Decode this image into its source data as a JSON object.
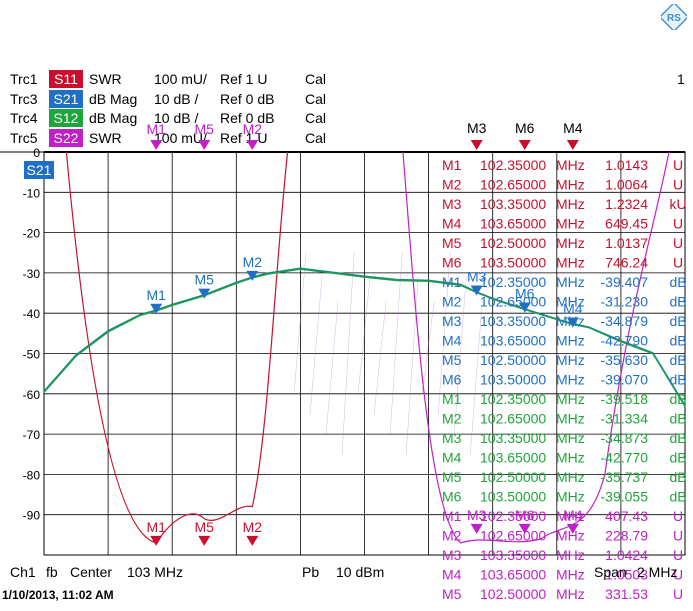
{
  "window": {
    "channel_number": "1"
  },
  "traces": [
    {
      "id": "Trc1",
      "param": "S11",
      "format": "SWR",
      "scale": "100 mU/",
      "ref": "Ref 1 U",
      "cal": "Cal",
      "color": "#c8102e"
    },
    {
      "id": "Trc3",
      "param": "S21",
      "format": "dB Mag",
      "scale": "10 dB /",
      "ref": "Ref 0 dB",
      "cal": "Cal",
      "color": "#1f6fc6"
    },
    {
      "id": "Trc4",
      "param": "S12",
      "format": "dB Mag",
      "scale": "10 dB /",
      "ref": "Ref 0 dB",
      "cal": "Cal",
      "color": "#1fa63a"
    },
    {
      "id": "Trc5",
      "param": "S22",
      "format": "SWR",
      "scale": "100 mU/",
      "ref": "Ref 1 U",
      "cal": "Cal",
      "color": "#c020c8"
    }
  ],
  "active_trace_tag": "S21",
  "footer": {
    "channel": "Ch1",
    "fb": "fb",
    "center": "Center",
    "center_value": "103 MHz",
    "pb": "Pb",
    "power": "10 dBm",
    "span": "Span",
    "span_value": "2 MHz",
    "timestamp": "1/10/2013, 11:02 AM"
  },
  "logo_icon": "rs-logo-icon",
  "chart_data": {
    "type": "line",
    "x_label_unit": "MHz",
    "xlim": [
      102,
      104
    ],
    "ylim": [
      -100,
      0
    ],
    "y_ticks": [
      0,
      -10,
      -20,
      -30,
      -40,
      -50,
      -60,
      -70,
      -80,
      -90
    ],
    "y_tick_labels": [
      "0",
      "-10",
      "-20",
      "-30",
      "-40",
      "-50",
      "-60",
      "-70",
      "-80",
      "-90"
    ],
    "grid": true,
    "series": [
      {
        "param": "S21",
        "color": "#1f6fc6",
        "x": [
          102.0,
          102.1,
          102.2,
          102.3,
          102.35,
          102.4,
          102.5,
          102.6,
          102.65,
          102.7,
          102.8,
          102.9,
          103.0,
          103.1,
          103.2,
          103.3,
          103.35,
          103.4,
          103.5,
          103.6,
          103.65,
          103.7,
          103.8,
          103.9,
          104.0
        ],
        "values": [
          -59.5,
          -50.5,
          -44.5,
          -40.5,
          -39.4,
          -38.0,
          -35.6,
          -32.5,
          -31.2,
          -30.2,
          -29.0,
          -30.0,
          -31.0,
          -31.8,
          -32.0,
          -33.0,
          -34.9,
          -36.5,
          -39.1,
          -41.6,
          -42.8,
          -43.6,
          -47.0,
          -50.0,
          -63.0
        ]
      },
      {
        "param": "S12",
        "color": "#1fa63a",
        "x": [
          102.0,
          102.1,
          102.2,
          102.3,
          102.35,
          102.4,
          102.5,
          102.6,
          102.65,
          102.7,
          102.8,
          102.9,
          103.0,
          103.1,
          103.2,
          103.3,
          103.35,
          103.4,
          103.5,
          103.6,
          103.65,
          103.7,
          103.8,
          103.9,
          104.0
        ],
        "values": [
          -59.7,
          -50.7,
          -44.7,
          -40.6,
          -39.5,
          -38.1,
          -35.7,
          -32.6,
          -31.3,
          -30.3,
          -29.1,
          -30.1,
          -31.1,
          -31.9,
          -32.1,
          -33.1,
          -34.9,
          -36.5,
          -39.1,
          -41.6,
          -42.8,
          -43.6,
          -47.1,
          -50.1,
          -63.2
        ]
      }
    ],
    "reflection_traces": [
      {
        "param": "S11",
        "color": "#c8102e"
      },
      {
        "param": "S22",
        "color": "#c020c8"
      }
    ],
    "top_markers": [
      {
        "label": "M3",
        "x": 103.35,
        "color": "#c8102e"
      },
      {
        "label": "M6",
        "x": 103.5,
        "color": "#c8102e"
      },
      {
        "label": "M4",
        "x": 103.65,
        "color": "#c8102e"
      }
    ],
    "markers_s21": [
      {
        "label": "M1",
        "x": 102.35,
        "y": -39.407
      },
      {
        "label": "M5",
        "x": 102.5,
        "y": -35.63
      },
      {
        "label": "M2",
        "x": 102.65,
        "y": -31.23
      },
      {
        "label": "M3",
        "x": 103.35,
        "y": -34.879
      },
      {
        "label": "M6",
        "x": 103.5,
        "y": -39.07
      },
      {
        "label": "M4",
        "x": 103.65,
        "y": -42.79
      }
    ],
    "markers_s11_bottom": [
      {
        "label": "M1",
        "x": 102.35
      },
      {
        "label": "M5",
        "x": 102.5
      },
      {
        "label": "M2",
        "x": 102.65
      }
    ],
    "markers_s22_bottom": [
      {
        "label": "M3",
        "x": 103.35
      },
      {
        "label": "M6",
        "x": 103.5
      },
      {
        "label": "M4",
        "x": 103.65
      }
    ],
    "markers_s22_top": [
      {
        "label": "M1",
        "x": 102.35
      },
      {
        "label": "M5",
        "x": 102.5
      },
      {
        "label": "M2",
        "x": 102.65
      }
    ],
    "marker_table": [
      {
        "m": "M1",
        "freq": "102.35000",
        "unit": "MHz",
        "value": "1.0143",
        "vunit": "U",
        "color": "#c8102e"
      },
      {
        "m": "M2",
        "freq": "102.65000",
        "unit": "MHz",
        "value": "1.0064",
        "vunit": "U",
        "color": "#c8102e"
      },
      {
        "m": "M3",
        "freq": "103.35000",
        "unit": "MHz",
        "value": "1.2324",
        "vunit": "kU",
        "color": "#c8102e"
      },
      {
        "m": "M4",
        "freq": "103.65000",
        "unit": "MHz",
        "value": "649.45",
        "vunit": "U",
        "color": "#c8102e"
      },
      {
        "m": "M5",
        "freq": "102.50000",
        "unit": "MHz",
        "value": "1.0137",
        "vunit": "U",
        "color": "#c8102e"
      },
      {
        "m": "M6",
        "freq": "103.50000",
        "unit": "MHz",
        "value": "746.24",
        "vunit": "U",
        "color": "#c8102e"
      },
      {
        "m": "M1",
        "freq": "102.35000",
        "unit": "MHz",
        "value": "-39.407",
        "vunit": "dB",
        "color": "#1f6fc6"
      },
      {
        "m": "M2",
        "freq": "102.65000",
        "unit": "MHz",
        "value": "-31.230",
        "vunit": "dB",
        "color": "#1f6fc6"
      },
      {
        "m": "M3",
        "freq": "103.35000",
        "unit": "MHz",
        "value": "-34.879",
        "vunit": "dB",
        "color": "#1f6fc6"
      },
      {
        "m": "M4",
        "freq": "103.65000",
        "unit": "MHz",
        "value": "-42.790",
        "vunit": "dB",
        "color": "#1f6fc6"
      },
      {
        "m": "M5",
        "freq": "102.50000",
        "unit": "MHz",
        "value": "-35.630",
        "vunit": "dB",
        "color": "#1f6fc6"
      },
      {
        "m": "M6",
        "freq": "103.50000",
        "unit": "MHz",
        "value": "-39.070",
        "vunit": "dB",
        "color": "#1f6fc6"
      },
      {
        "m": "M1",
        "freq": "102.35000",
        "unit": "MHz",
        "value": "-39.518",
        "vunit": "dB",
        "color": "#1fa63a"
      },
      {
        "m": "M2",
        "freq": "102.65000",
        "unit": "MHz",
        "value": "-31.334",
        "vunit": "dB",
        "color": "#1fa63a"
      },
      {
        "m": "M3",
        "freq": "103.35000",
        "unit": "MHz",
        "value": "-34.873",
        "vunit": "dB",
        "color": "#1fa63a"
      },
      {
        "m": "M4",
        "freq": "103.65000",
        "unit": "MHz",
        "value": "-42.770",
        "vunit": "dB",
        "color": "#1fa63a"
      },
      {
        "m": "M5",
        "freq": "102.50000",
        "unit": "MHz",
        "value": "-35.737",
        "vunit": "dB",
        "color": "#1fa63a"
      },
      {
        "m": "M6",
        "freq": "103.50000",
        "unit": "MHz",
        "value": "-39.055",
        "vunit": "dB",
        "color": "#1fa63a"
      },
      {
        "m": "M1",
        "freq": "102.35000",
        "unit": "MHz",
        "value": "407.43",
        "vunit": "U",
        "color": "#c020c8"
      },
      {
        "m": "M2",
        "freq": "102.65000",
        "unit": "MHz",
        "value": "228.79",
        "vunit": "U",
        "color": "#c020c8"
      },
      {
        "m": "M3",
        "freq": "103.35000",
        "unit": "MHz",
        "value": "1.0424",
        "vunit": "U",
        "color": "#c020c8"
      },
      {
        "m": "M4",
        "freq": "103.65000",
        "unit": "MHz",
        "value": "1.0503",
        "vunit": "U",
        "color": "#c020c8"
      },
      {
        "m": "M5",
        "freq": "102.50000",
        "unit": "MHz",
        "value": "331.53",
        "vunit": "U",
        "color": "#c020c8"
      }
    ]
  }
}
